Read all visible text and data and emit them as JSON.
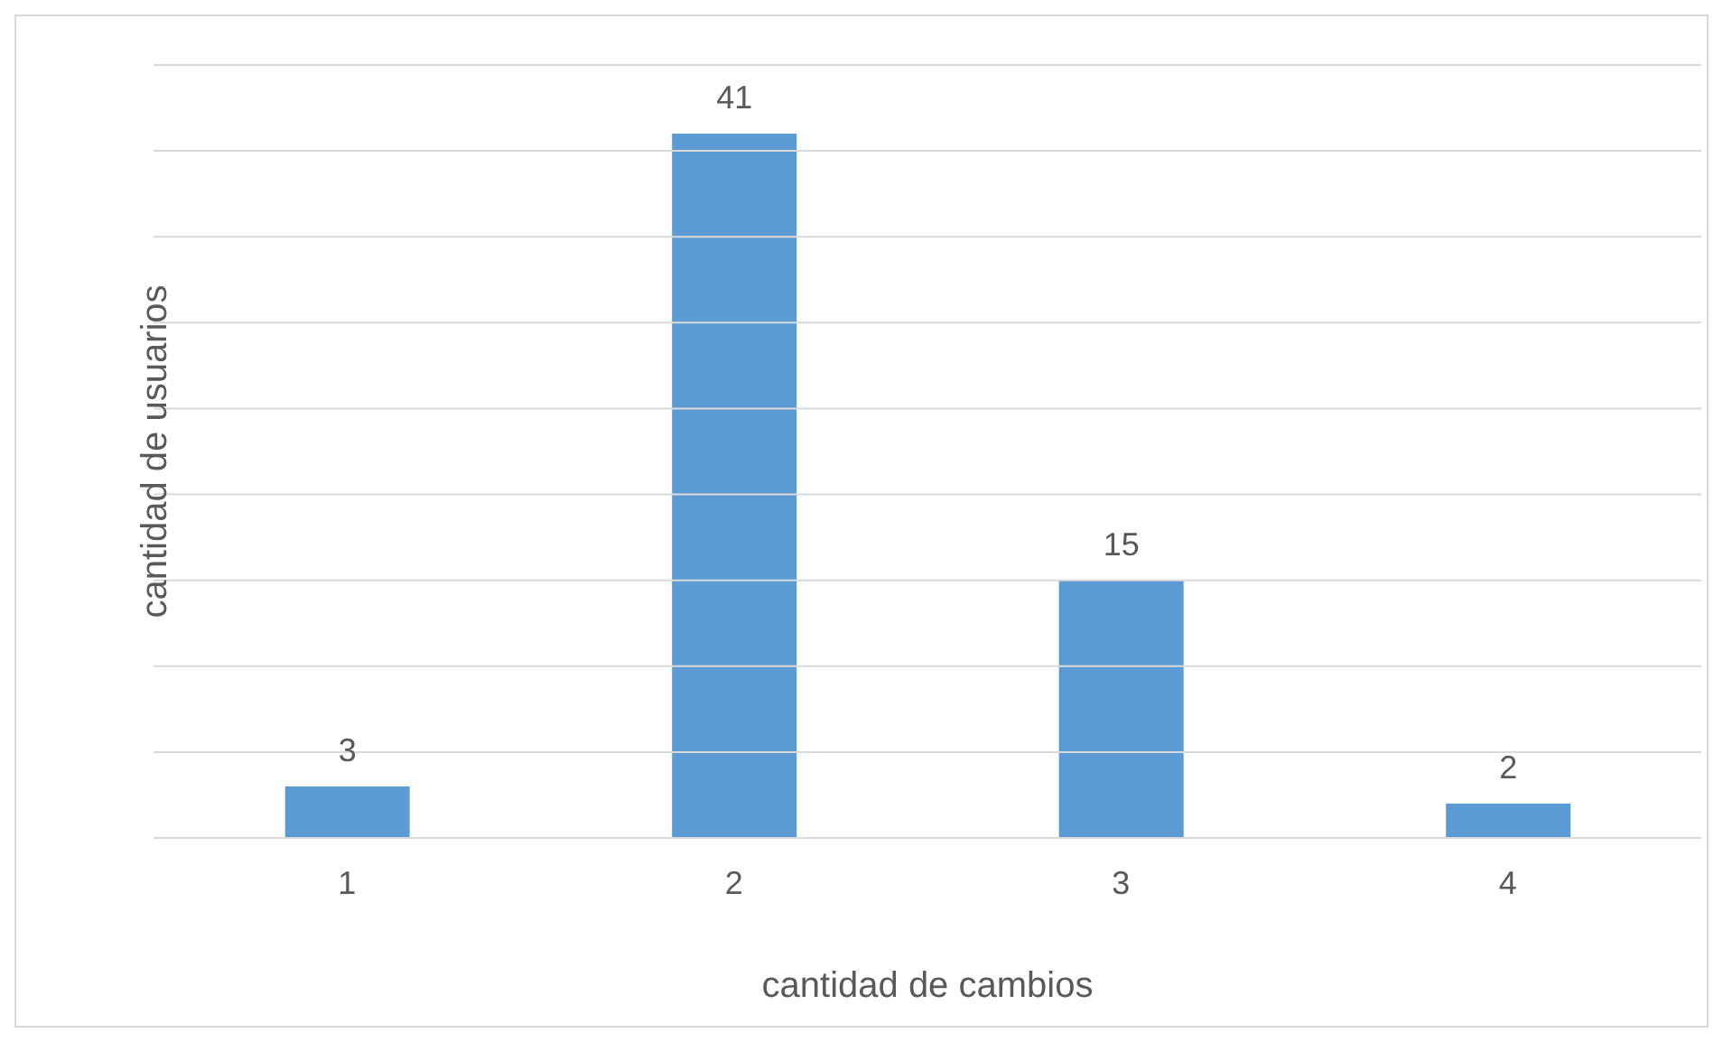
{
  "chart_data": {
    "type": "bar",
    "xlabel": "cantidad de cambios",
    "ylabel": "cantidad de usuarios",
    "categories": [
      "1",
      "2",
      "3",
      "4"
    ],
    "values": [
      3,
      41,
      15,
      2
    ],
    "color": "#5b9bd5",
    "ylim": [
      0,
      45
    ],
    "yticks": [
      {
        "value": 0,
        "label": null
      },
      {
        "value": 5,
        "label": null
      },
      {
        "value": 10,
        "label": null
      },
      {
        "value": 15,
        "label": null
      },
      {
        "value": 20,
        "label": null
      },
      {
        "value": 25,
        "label": null
      },
      {
        "value": 30,
        "label": null
      },
      {
        "value": 35,
        "label": null
      },
      {
        "value": 40,
        "label": null
      },
      {
        "value": 45,
        "label": null
      }
    ],
    "grid": "y",
    "tick_labels": "x",
    "data_labels": true
  }
}
